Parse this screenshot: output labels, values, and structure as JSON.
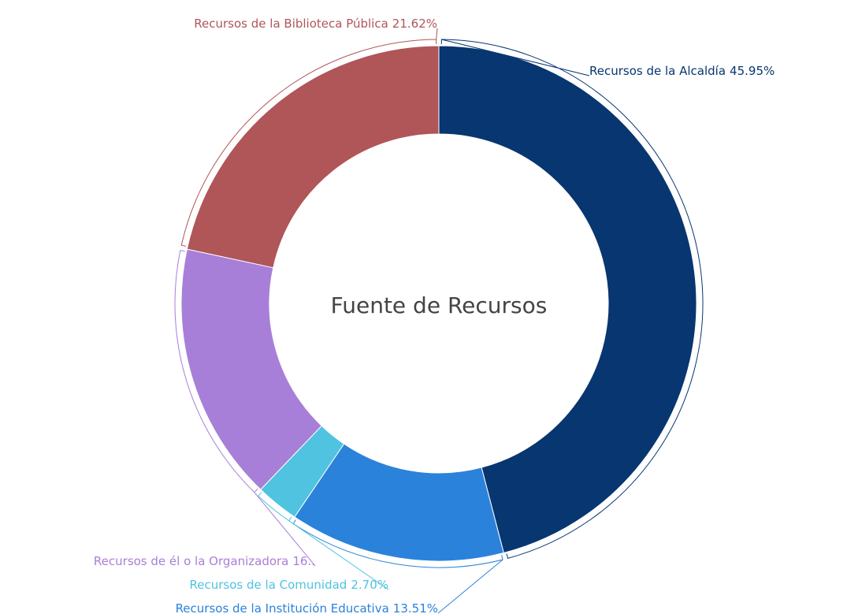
{
  "chart_data": {
    "type": "donut",
    "title": "Fuente de Recursos",
    "categories": [
      "Recursos de la Alcaldía",
      "Recursos de la Institución Educativa",
      "Recursos de la Comunidad",
      "Recursos de él o la Organizadora",
      "Recursos de la Biblioteca Pública"
    ],
    "values": [
      45.95,
      13.51,
      2.7,
      16.22,
      21.62
    ],
    "value_labels": [
      "45.95%",
      "13.51%",
      "2.70%",
      "16..",
      "21.62%"
    ],
    "colors": [
      "#073670",
      "#2b82db",
      "#4fc3e0",
      "#a77fd8",
      "#b05558"
    ]
  }
}
